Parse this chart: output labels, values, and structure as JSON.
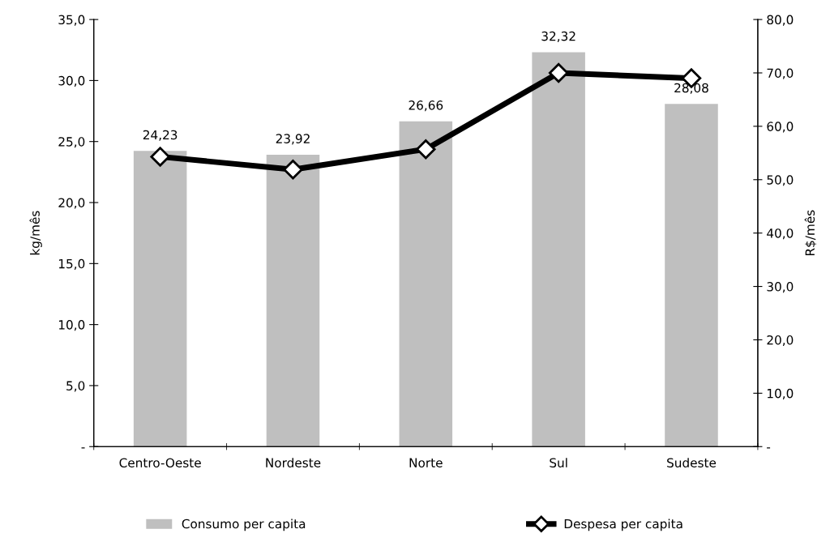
{
  "chart_data": {
    "type": "bar",
    "ylabel": "kg/mês",
    "y2label": "R$/mês",
    "categories": [
      "Centro-Oeste",
      "Nordeste",
      "Norte",
      "Sul",
      "Sudeste"
    ],
    "series": [
      {
        "name": "Consumo per capita",
        "color": "#bfbfbf",
        "values": [
          24.23,
          23.92,
          26.66,
          32.32,
          28.08
        ],
        "value_labels": [
          "24,23",
          "23,92",
          "26,66",
          "32,32",
          "28,08"
        ]
      },
      {
        "name": "Despesa per capita",
        "type": "line",
        "axis": "y2",
        "color": "#000000",
        "marker": "diamond",
        "values": [
          54.3,
          51.9,
          55.7,
          70.0,
          69.0
        ]
      }
    ],
    "ylim": [
      0,
      35
    ],
    "yticks": [
      {
        "value": 0,
        "label": "-"
      },
      {
        "value": 5,
        "label": "5,0"
      },
      {
        "value": 10,
        "label": "10,0"
      },
      {
        "value": 15,
        "label": "15,0"
      },
      {
        "value": 20,
        "label": "20,0"
      },
      {
        "value": 25,
        "label": "25,0"
      },
      {
        "value": 30,
        "label": "30,0"
      },
      {
        "value": 35,
        "label": "35,0"
      }
    ],
    "y2lim": [
      0,
      80
    ],
    "y2ticks": [
      {
        "value": 0,
        "label": "-"
      },
      {
        "value": 10,
        "label": "10,0"
      },
      {
        "value": 20,
        "label": "20,0"
      },
      {
        "value": 30,
        "label": "30,0"
      },
      {
        "value": 40,
        "label": "40,0"
      },
      {
        "value": 50,
        "label": "50,0"
      },
      {
        "value": 60,
        "label": "60,0"
      },
      {
        "value": 70,
        "label": "70,0"
      },
      {
        "value": 80,
        "label": "80,0"
      }
    ],
    "grid": false,
    "legend": "bottom"
  }
}
